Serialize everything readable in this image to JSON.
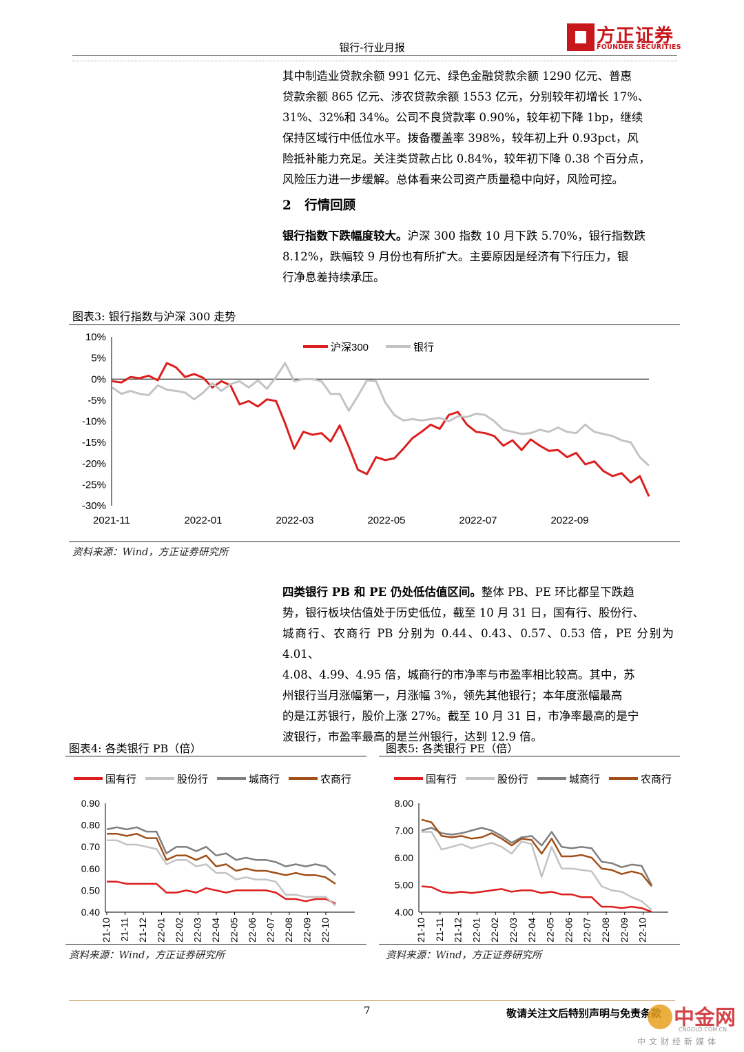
{
  "header": {
    "title": "银行-行业月报",
    "logo_cn": "方正证券",
    "logo_en": "FOUNDER SECURITIES"
  },
  "para1": {
    "lines": [
      "其中制造业贷款余额 991 亿元、绿色金融贷款余额 1290 亿元、普惠",
      "贷款余额 865 亿元、涉农贷款余额 1553 亿元，分别较年初增长 17%、",
      "31%、32%和 34%。公司不良贷款率 0.90%，较年初下降 1bp，继续",
      "保持区域行中低位水平。拨备覆盖率 398%，较年初上升 0.93pct，风",
      "险抵补能力充足。关注类贷款占比 0.84%，较年初下降 0.38 个百分点，",
      "风险压力进一步缓解。总体看来公司资产质量稳中向好，风险可控。"
    ]
  },
  "section2": {
    "number": "2",
    "title": "行情回顾"
  },
  "para2": {
    "bold": "银行指数下跌幅度较大。",
    "lines": [
      "沪深 300 指数 10 月下跌 5.70%，银行指数跌",
      "8.12%，跌幅较 9 月份也有所扩大。主要原因是经济有下行压力，银",
      "行净息差持续承压。"
    ]
  },
  "fig3": {
    "caption": "图表3:   银行指数与沪深 300 走势",
    "source": "资料来源：Wind，方正证券研究所"
  },
  "para3": {
    "bold": "四类银行 PB 和 PE 仍处低估值区间。",
    "lines": [
      "整体 PB、PE 环比都呈下跌趋",
      "势，银行板块估值处于历史低位，截至 10 月 31 日，国有行、股份行、",
      "城商行、农商行 PB 分别为 0.44、0.43、0.57、0.53 倍，PE 分别为 4.01、",
      "4.08、4.99、4.95 倍，城商行的市净率与市盈率相比较高。其中，苏",
      "州银行当月涨幅第一，月涨幅 3%，领先其他银行；本年度涨幅最高",
      "的是江苏银行，股价上涨 27%。截至 10 月 31 日，市净率最高的是宁",
      "波银行，市盈率最高的是兰州银行，达到 12.9 倍。"
    ]
  },
  "fig4": {
    "caption": "图表4:   各类银行 PB（倍）",
    "source": "资料来源：Wind，方正证券研究所"
  },
  "fig5": {
    "caption": "图表5:   各类银行 PE（倍）",
    "source": "资料来源：Wind，方正证券研究所"
  },
  "footer": {
    "page_number": "7",
    "note": "敬请关注文后特别声明与免责条款",
    "watermark_cn": "中金网",
    "watermark_domain": "CNGOLD.COM.CN",
    "watermark_sub": "中文财经新媒体"
  },
  "colors": {
    "red": "#dc1e1e",
    "light_gray": "#c3c3c3",
    "dark_gray": "#7f7f7f",
    "brown": "#a0501a",
    "brand_red": "#c8161d"
  },
  "chart_data": [
    {
      "id": "fig3",
      "type": "line",
      "x_ticks": [
        "2021-11",
        "2022-01",
        "2022-03",
        "2022-05",
        "2022-07",
        "2022-09"
      ],
      "y_ticks": [
        "10%",
        "5%",
        "0%",
        "-5%",
        "-10%",
        "-15%",
        "-20%",
        "-25%",
        "-30%"
      ],
      "ylim": [
        -30,
        10
      ],
      "legend_position": "top-center",
      "series": [
        {
          "name": "沪深300",
          "color": "red",
          "values": [
            -0.5,
            -0.8,
            0.5,
            0.2,
            0.8,
            -0.3,
            3.8,
            2.8,
            0.5,
            1.2,
            0.3,
            -2.0,
            -0.5,
            -1.5,
            -6.0,
            -5.2,
            -6.5,
            -4.8,
            -5.2,
            -10.5,
            -16.5,
            -12.5,
            -13.2,
            -12.8,
            -14.8,
            -11.0,
            -16.0,
            -21.5,
            -22.5,
            -18.5,
            -19.2,
            -18.8,
            -16.5,
            -14.0,
            -12.5,
            -10.8,
            -11.8,
            -8.5,
            -7.8,
            -10.8,
            -12.5,
            -12.8,
            -13.5,
            -15.8,
            -14.5,
            -16.8,
            -14.3,
            -15.8,
            -17.0,
            -16.8,
            -18.5,
            -17.5,
            -20.2,
            -19.5,
            -21.8,
            -23.0,
            -22.3,
            -24.5,
            -23.0,
            -27.8
          ]
        },
        {
          "name": "银行",
          "color": "light_gray",
          "values": [
            -2.0,
            -3.5,
            -2.8,
            -3.5,
            -3.8,
            -1.5,
            -2.5,
            -2.8,
            -3.2,
            -4.8,
            -3.2,
            -1.0,
            -2.8,
            -1.2,
            -0.5,
            -2.0,
            -0.3,
            -2.3,
            0.5,
            3.8,
            -0.5,
            0.0,
            0.0,
            -0.5,
            -3.5,
            -3.5,
            -7.5,
            -4.0,
            -0.3,
            -0.5,
            -5.5,
            -8.5,
            -9.8,
            -9.5,
            -9.8,
            -9.5,
            -9.2,
            -10.0,
            -8.8,
            -9.0,
            -8.2,
            -8.5,
            -10.0,
            -12.0,
            -12.5,
            -13.0,
            -12.8,
            -12.0,
            -12.5,
            -11.5,
            -12.5,
            -12.8,
            -10.8,
            -12.5,
            -13.0,
            -13.5,
            -14.5,
            -15.0,
            -18.5,
            -20.5
          ]
        }
      ]
    },
    {
      "id": "fig4",
      "type": "line",
      "x_ticks": [
        "21-10",
        "21-11",
        "21-12",
        "22-01",
        "22-02",
        "22-03",
        "22-04",
        "22-05",
        "22-06",
        "22-07",
        "22-08",
        "22-09",
        "22-10"
      ],
      "y_ticks": [
        "0.90",
        "0.80",
        "0.70",
        "0.60",
        "0.50",
        "0.40"
      ],
      "ylim": [
        0.4,
        0.9
      ],
      "legend_position": "top",
      "series": [
        {
          "name": "国有行",
          "color": "red",
          "values": [
            0.54,
            0.54,
            0.53,
            0.53,
            0.53,
            0.53,
            0.49,
            0.49,
            0.5,
            0.49,
            0.51,
            0.5,
            0.49,
            0.5,
            0.5,
            0.5,
            0.5,
            0.49,
            0.46,
            0.46,
            0.45,
            0.46,
            0.46,
            0.44
          ]
        },
        {
          "name": "股份行",
          "color": "light_gray",
          "values": [
            0.73,
            0.73,
            0.71,
            0.71,
            0.7,
            0.69,
            0.62,
            0.64,
            0.64,
            0.61,
            0.62,
            0.58,
            0.58,
            0.55,
            0.56,
            0.55,
            0.55,
            0.54,
            0.48,
            0.48,
            0.47,
            0.47,
            0.47,
            0.43
          ]
        },
        {
          "name": "城商行",
          "color": "dark_gray",
          "values": [
            0.78,
            0.79,
            0.78,
            0.79,
            0.77,
            0.77,
            0.67,
            0.7,
            0.7,
            0.68,
            0.7,
            0.66,
            0.67,
            0.64,
            0.65,
            0.64,
            0.64,
            0.63,
            0.61,
            0.62,
            0.61,
            0.62,
            0.61,
            0.57
          ]
        },
        {
          "name": "农商行",
          "color": "brown",
          "values": [
            0.76,
            0.76,
            0.75,
            0.76,
            0.74,
            0.74,
            0.64,
            0.66,
            0.66,
            0.64,
            0.66,
            0.61,
            0.62,
            0.59,
            0.6,
            0.59,
            0.59,
            0.58,
            0.57,
            0.58,
            0.57,
            0.57,
            0.56,
            0.53
          ]
        }
      ]
    },
    {
      "id": "fig5",
      "type": "line",
      "x_ticks": [
        "21-10",
        "21-11",
        "21-12",
        "22-01",
        "22-02",
        "22-03",
        "22-04",
        "22-05",
        "22-06",
        "22-07",
        "22-08",
        "22-09",
        "22-10"
      ],
      "y_ticks": [
        "8.00",
        "7.00",
        "6.00",
        "5.00",
        "4.00"
      ],
      "ylim": [
        4.0,
        8.0
      ],
      "legend_position": "top",
      "series": [
        {
          "name": "国有行",
          "color": "red",
          "values": [
            4.95,
            4.92,
            4.75,
            4.7,
            4.75,
            4.7,
            4.75,
            4.8,
            4.85,
            4.75,
            4.8,
            4.8,
            4.7,
            4.75,
            4.65,
            4.65,
            4.55,
            4.55,
            4.2,
            4.2,
            4.15,
            4.2,
            4.15,
            4.01
          ]
        },
        {
          "name": "股份行",
          "color": "light_gray",
          "values": [
            6.95,
            6.95,
            6.3,
            6.4,
            6.5,
            6.35,
            6.45,
            6.55,
            6.4,
            6.15,
            6.6,
            6.5,
            5.3,
            6.4,
            5.6,
            5.6,
            5.55,
            5.5,
            4.95,
            4.8,
            4.75,
            4.55,
            4.4,
            4.08
          ]
        },
        {
          "name": "城商行",
          "color": "dark_gray",
          "values": [
            7.0,
            7.1,
            6.9,
            6.85,
            6.9,
            7.0,
            7.1,
            7.0,
            6.8,
            6.55,
            6.75,
            6.8,
            6.45,
            6.95,
            6.4,
            6.35,
            6.4,
            6.35,
            5.85,
            5.8,
            5.65,
            5.75,
            5.7,
            4.99
          ]
        },
        {
          "name": "农商行",
          "color": "brown",
          "values": [
            7.4,
            7.3,
            6.8,
            6.75,
            6.8,
            6.7,
            6.75,
            6.9,
            6.7,
            6.45,
            6.7,
            6.65,
            6.15,
            6.7,
            6.05,
            6.05,
            6.1,
            6.0,
            5.6,
            5.55,
            5.4,
            5.5,
            5.4,
            4.95
          ]
        }
      ]
    }
  ]
}
